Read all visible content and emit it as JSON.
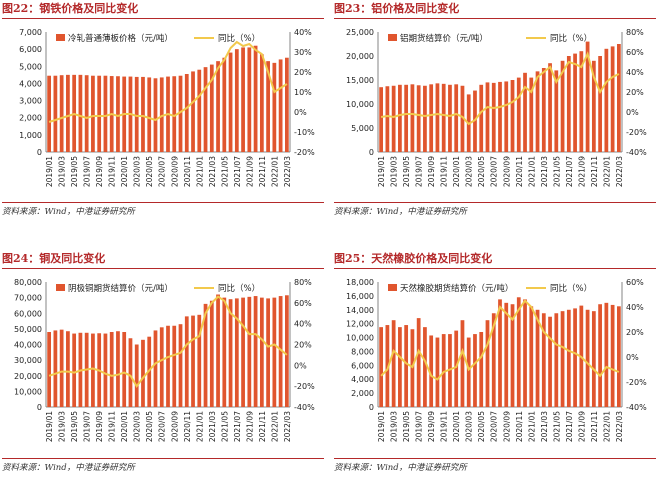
{
  "chart_data": [
    {
      "type": "bar",
      "panel_title": "图22：钢铁价格及同比变化",
      "source": "资料来源：Wind，中港证券研究所",
      "bar_legend": "冷轧普通薄板价格（元/吨）",
      "line_legend": "同比（%）",
      "y_left": {
        "min": 0,
        "max": 7000,
        "ticks": [
          "0",
          "1,000",
          "2,000",
          "3,000",
          "4,000",
          "5,000",
          "6,000",
          "7,000"
        ]
      },
      "y_right": {
        "min": -20,
        "max": 40,
        "ticks": [
          "-20%",
          "-10%",
          "0%",
          "10%",
          "20%",
          "30%",
          "40%"
        ]
      },
      "x_ticks": [
        "2019/01",
        "2019/03",
        "2019/05",
        "2019/07",
        "2019/09",
        "2019/11",
        "2020/01",
        "2020/03",
        "2020/05",
        "2020/07",
        "2020/09",
        "2020/11",
        "2021/01",
        "2021/03",
        "2021/05",
        "2021/07",
        "2021/09",
        "2021/11",
        "2022/01",
        "2022/03"
      ],
      "bars": [
        4450,
        4450,
        4480,
        4500,
        4500,
        4500,
        4480,
        4450,
        4450,
        4450,
        4430,
        4420,
        4400,
        4400,
        4380,
        4380,
        4350,
        4300,
        4350,
        4400,
        4420,
        4450,
        4550,
        4700,
        4800,
        4950,
        5100,
        5300,
        5500,
        5800,
        6000,
        6100,
        6100,
        6200,
        5700,
        5300,
        5200,
        5400,
        5500
      ],
      "line": [
        -5,
        -4,
        -3,
        -2,
        -1,
        -2,
        -3,
        -2,
        -2,
        -2,
        -1,
        -2,
        -1,
        -1,
        -2,
        -2,
        -3,
        -4,
        -2,
        -1,
        -2,
        0,
        2,
        5,
        8,
        12,
        16,
        22,
        26,
        32,
        35,
        33,
        34,
        31,
        29,
        20,
        10,
        12,
        14
      ]
    },
    {
      "type": "bar",
      "panel_title": "图23：铝价格及同比变化",
      "source": "资料来源：Wind，中港证券研究所",
      "bar_legend": "铝期货结算价（元/吨）",
      "line_legend": "同比（%）",
      "y_left": {
        "min": 0,
        "max": 25000,
        "ticks": [
          "0",
          "5,000",
          "10,000",
          "15,000",
          "20,000",
          "25,000"
        ]
      },
      "y_right": {
        "min": -40,
        "max": 80,
        "ticks": [
          "-40%",
          "-20%",
          "0%",
          "20%",
          "40%",
          "60%",
          "80%"
        ]
      },
      "x_ticks": [
        "2019/01",
        "2019/03",
        "2019/05",
        "2019/07",
        "2019/09",
        "2019/11",
        "2020/01",
        "2020/03",
        "2020/05",
        "2020/07",
        "2020/09",
        "2020/11",
        "2021/01",
        "2021/03",
        "2021/05",
        "2021/07",
        "2021/09",
        "2021/11",
        "2022/01",
        "2022/03"
      ],
      "bars": [
        13500,
        13700,
        13800,
        14000,
        14000,
        14100,
        13900,
        13800,
        14100,
        14300,
        14200,
        14000,
        14100,
        13800,
        12000,
        12800,
        14000,
        14500,
        14400,
        14600,
        14700,
        15000,
        15500,
        16500,
        15500,
        16800,
        17500,
        18500,
        17000,
        19000,
        20000,
        20500,
        21000,
        23000,
        19000,
        20000,
        21500,
        22000,
        22500
      ],
      "line": [
        -5,
        -4,
        -5,
        -3,
        -2,
        -2,
        -3,
        -4,
        -3,
        -2,
        -3,
        -4,
        -2,
        -5,
        -12,
        -8,
        0,
        5,
        4,
        5,
        7,
        10,
        15,
        25,
        20,
        35,
        40,
        45,
        30,
        40,
        50,
        48,
        45,
        58,
        35,
        20,
        30,
        35,
        38
      ]
    },
    {
      "type": "bar",
      "panel_title": "图24：铜及同比变化",
      "source": "资料来源：Wind，中港证券研究所",
      "bar_legend": "阴极铜期货结算价（元/吨）",
      "line_legend": "同比（%）",
      "y_left": {
        "min": 0,
        "max": 80000,
        "ticks": [
          "0",
          "10,000",
          "20,000",
          "30,000",
          "40,000",
          "50,000",
          "60,000",
          "70,000",
          "80,000"
        ]
      },
      "y_right": {
        "min": -40,
        "max": 80,
        "ticks": [
          "-40%",
          "-20%",
          "0%",
          "20%",
          "40%",
          "60%",
          "80%"
        ]
      },
      "x_ticks": [
        "2019/01",
        "2019/03",
        "2019/05",
        "2019/07",
        "2019/09",
        "2019/11",
        "2020/01",
        "2020/03",
        "2020/05",
        "2020/07",
        "2020/09",
        "2020/11",
        "2021/01",
        "2021/03",
        "2021/05",
        "2021/07",
        "2021/09",
        "2021/11",
        "2022/01",
        "2022/03"
      ],
      "bars": [
        48000,
        49000,
        49500,
        48500,
        47000,
        47500,
        47500,
        47000,
        47200,
        47000,
        48000,
        48500,
        48000,
        44000,
        40000,
        43000,
        45000,
        49000,
        51000,
        52000,
        52000,
        53000,
        58000,
        58500,
        59000,
        66000,
        68000,
        72000,
        70000,
        69000,
        69500,
        70000,
        70500,
        71000,
        70000,
        69500,
        70000,
        71000,
        71500
      ],
      "line": [
        -10,
        -8,
        -6,
        -6,
        -7,
        -5,
        -4,
        -3,
        -5,
        -8,
        -10,
        -9,
        -7,
        -10,
        -20,
        -12,
        -5,
        2,
        5,
        8,
        10,
        12,
        20,
        25,
        28,
        50,
        60,
        66,
        62,
        50,
        45,
        38,
        30,
        30,
        25,
        18,
        20,
        15,
        10
      ]
    },
    {
      "type": "bar",
      "panel_title": "图25：天然橡胶价格及同比变化",
      "source": "资料来源：Wind，中港证券研究所",
      "bar_legend": "天然橡胶期货结算价（元/吨）",
      "line_legend": "同比（%）",
      "y_left": {
        "min": 0,
        "max": 18000,
        "ticks": [
          "0",
          "2,000",
          "4,000",
          "6,000",
          "8,000",
          "10,000",
          "12,000",
          "14,000",
          "16,000",
          "18,000"
        ]
      },
      "y_right": {
        "min": -40,
        "max": 60,
        "ticks": [
          "-40%",
          "-20%",
          "0%",
          "20%",
          "40%",
          "60%"
        ]
      },
      "x_ticks": [
        "2019/01",
        "2019/03",
        "2019/05",
        "2019/07",
        "2019/09",
        "2019/11",
        "2020/01",
        "2020/03",
        "2020/05",
        "2020/07",
        "2020/09",
        "2020/11",
        "2021/01",
        "2021/03",
        "2021/05",
        "2021/07",
        "2021/09",
        "2021/11",
        "2022/01",
        "2022/03"
      ],
      "bars": [
        11500,
        11800,
        12500,
        11500,
        11800,
        11200,
        12800,
        11500,
        10300,
        10000,
        10500,
        10500,
        11000,
        12500,
        10000,
        10500,
        10800,
        12500,
        13500,
        15500,
        15000,
        14800,
        15800,
        15500,
        14500,
        14000,
        13500,
        13000,
        13500,
        13800,
        14000,
        14200,
        14600,
        14000,
        13800,
        14800,
        15000,
        14700,
        14500
      ],
      "line": [
        -15,
        -10,
        5,
        0,
        -5,
        -8,
        5,
        -3,
        -15,
        -18,
        -12,
        -10,
        -8,
        5,
        -10,
        -5,
        0,
        10,
        25,
        40,
        35,
        30,
        38,
        45,
        40,
        30,
        20,
        15,
        10,
        8,
        5,
        3,
        0,
        -5,
        -10,
        -15,
        -8,
        -10,
        -12
      ]
    }
  ]
}
